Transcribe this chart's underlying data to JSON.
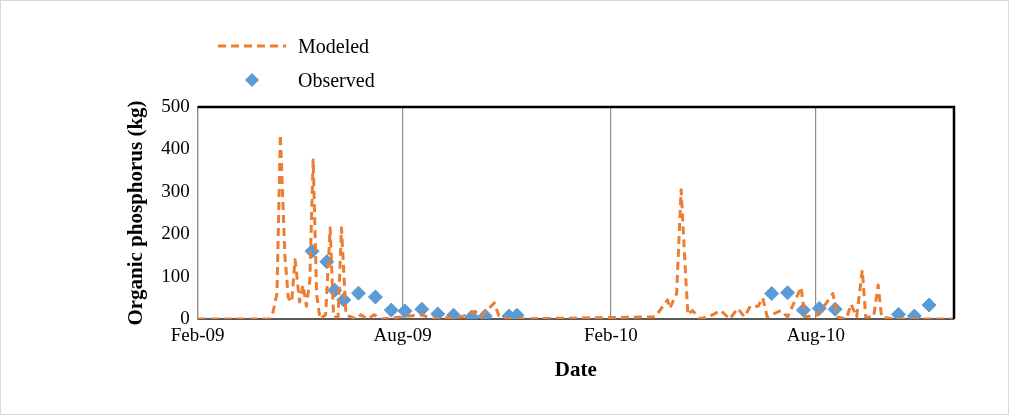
{
  "chart_data": {
    "type": "line",
    "xlabel": "Date",
    "ylabel": "Organic phosphorus (kg)",
    "xlim": [
      "2009-02-01",
      "2010-12-01"
    ],
    "xticks": [
      {
        "value": "2009-02-01",
        "label": "Feb-09"
      },
      {
        "value": "2009-08-01",
        "label": "Aug-09"
      },
      {
        "value": "2010-02-01",
        "label": "Feb-10"
      },
      {
        "value": "2010-08-01",
        "label": "Aug-10"
      }
    ],
    "ylim": [
      0,
      500
    ],
    "yticks": [
      0,
      100,
      200,
      300,
      400,
      500
    ],
    "grid": "x",
    "legend": "top left",
    "series": [
      {
        "name": "Modeled",
        "type": "line",
        "line_style": "dashed",
        "marker": "none",
        "color": "#ed7d31",
        "x": [
          "2009-02-01",
          "2009-04-05",
          "2009-04-08",
          "2009-04-12",
          "2009-04-15",
          "2009-04-19",
          "2009-04-22",
          "2009-04-25",
          "2009-04-28",
          "2009-05-02",
          "2009-05-05",
          "2009-05-08",
          "2009-05-11",
          "2009-05-14",
          "2009-05-17",
          "2009-05-20",
          "2009-05-25",
          "2009-05-29",
          "2009-06-01",
          "2009-06-05",
          "2009-06-08",
          "2009-06-12",
          "2009-06-21",
          "2009-06-25",
          "2009-07-01",
          "2009-07-07",
          "2009-07-13",
          "2009-07-31",
          "2009-08-18",
          "2009-08-27",
          "2009-09-22",
          "2009-10-04",
          "2009-10-09",
          "2009-10-21",
          "2009-10-25",
          "2009-11-03",
          "2010-03-12",
          "2010-03-23",
          "2010-03-25",
          "2010-03-31",
          "2010-04-04",
          "2010-04-08",
          "2010-04-10",
          "2010-04-14",
          "2010-04-21",
          "2010-05-02",
          "2010-05-09",
          "2010-05-17",
          "2010-05-24",
          "2010-05-30",
          "2010-06-04",
          "2010-06-11",
          "2010-06-15",
          "2010-06-19",
          "2010-07-01",
          "2010-07-07",
          "2010-07-19",
          "2010-07-22",
          "2010-08-03",
          "2010-08-16",
          "2010-08-20",
          "2010-08-28",
          "2010-09-01",
          "2010-09-06",
          "2010-09-11",
          "2010-09-14",
          "2010-09-21",
          "2010-09-25",
          "2010-09-28",
          "2010-10-09",
          "2010-12-01"
        ],
        "values": [
          0,
          0,
          10,
          60,
          435,
          150,
          50,
          40,
          140,
          40,
          80,
          30,
          90,
          375,
          60,
          0,
          10,
          215,
          5,
          5,
          215,
          10,
          0,
          10,
          0,
          10,
          0,
          5,
          10,
          0,
          5,
          18,
          5,
          38,
          8,
          0,
          5,
          45,
          25,
          60,
          305,
          100,
          10,
          20,
          0,
          10,
          20,
          0,
          25,
          5,
          30,
          30,
          50,
          5,
          20,
          5,
          75,
          5,
          10,
          60,
          5,
          0,
          35,
          5,
          115,
          5,
          5,
          80,
          5,
          0,
          0
        ]
      },
      {
        "name": "Observed",
        "type": "scatter",
        "marker": "diamond",
        "color": "#5b9bd5",
        "x": [
          "2009-05-13",
          "2009-05-26",
          "2009-06-02",
          "2009-06-10",
          "2009-06-23",
          "2009-07-08",
          "2009-07-22",
          "2009-08-03",
          "2009-08-18",
          "2009-09-01",
          "2009-09-15",
          "2009-10-01",
          "2009-10-13",
          "2009-11-03",
          "2009-11-10",
          "2010-06-23",
          "2010-07-07",
          "2010-07-21",
          "2010-08-04",
          "2010-08-18",
          "2010-10-13",
          "2010-10-27",
          "2010-11-09"
        ],
        "values": [
          160,
          135,
          68,
          45,
          61,
          52,
          21,
          19,
          23,
          12,
          9,
          5,
          7,
          7,
          9,
          60,
          62,
          21,
          25,
          23,
          11,
          7,
          33
        ]
      }
    ]
  }
}
